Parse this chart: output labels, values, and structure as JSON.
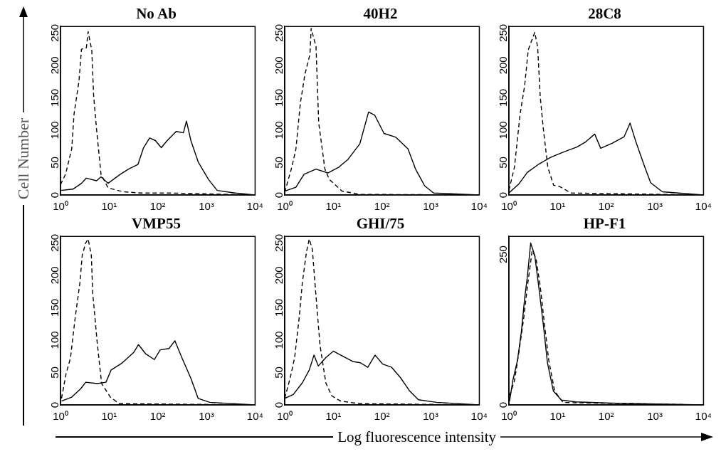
{
  "chart_data": [
    {
      "type": "line",
      "title": "No Ab",
      "ylabel": "Cell Number",
      "log": "x",
      "marker": "none",
      "xlim": [
        1,
        10000
      ],
      "xticks": [
        {
          "value": 1,
          "label": "10⁰"
        },
        {
          "value": 10,
          "label": "10¹"
        },
        {
          "value": 100,
          "label": "10²"
        },
        {
          "value": 1000,
          "label": "10³"
        },
        {
          "value": 10000,
          "label": "10⁴"
        }
      ],
      "ylim": [
        0,
        260
      ],
      "yticks": [
        0,
        50,
        100,
        150,
        200,
        250
      ],
      "series": [
        {
          "color": "#000000",
          "line_style": "dashed",
          "x": [
            1,
            1.27,
            1.7,
            1.9,
            2.4,
            2.7,
            3.4,
            3.7,
            4.4,
            4.8,
            5.5,
            6.8,
            9.5,
            19,
            45,
            178,
            724,
            10000
          ],
          "values": [
            16,
            32,
            71,
            125,
            176,
            225,
            227,
            252,
            223,
            153,
            102,
            32,
            11,
            5,
            3,
            3,
            2,
            0
          ]
        },
        {
          "color": "#000000",
          "line_style": "solid",
          "x": [
            1,
            1.8,
            2.7,
            3.4,
            5.5,
            6.8,
            9.5,
            17,
            25,
            39,
            51,
            68,
            89,
            118,
            156,
            238,
            336,
            388,
            478,
            676,
            1100,
            1660,
            3890,
            10000
          ],
          "values": [
            7,
            9,
            18,
            26,
            22,
            28,
            18,
            32,
            40,
            47,
            73,
            88,
            84,
            73,
            84,
            98,
            96,
            114,
            84,
            51,
            24,
            7,
            3,
            0
          ]
        }
      ]
    },
    {
      "type": "line",
      "title": "40H2",
      "log": "x",
      "marker": "none",
      "xlim": [
        1,
        10000
      ],
      "xticks": [
        {
          "value": 1,
          "label": "10⁰"
        },
        {
          "value": 10,
          "label": "10¹"
        },
        {
          "value": 100,
          "label": "10²"
        },
        {
          "value": 1000,
          "label": "10³"
        },
        {
          "value": 10000,
          "label": "10⁴"
        }
      ],
      "ylim": [
        0,
        260
      ],
      "yticks": [
        0,
        50,
        100,
        150,
        200,
        250
      ],
      "series": [
        {
          "color": "#000000",
          "line_style": "dashed",
          "x": [
            1,
            1.4,
            1.7,
            2.1,
            2.6,
            3.3,
            3.5,
            4.4,
            5,
            6.7,
            8.3,
            15,
            35,
            10000
          ],
          "values": [
            4,
            43,
            71,
            142,
            186,
            217,
            257,
            229,
            111,
            40,
            24,
            6,
            1,
            0
          ]
        },
        {
          "color": "#000000",
          "line_style": "solid",
          "x": [
            1,
            1.7,
            2.5,
            4.4,
            7.7,
            13,
            20,
            35,
            53,
            71,
            110,
            193,
            342,
            488,
            755,
            1150,
            10000
          ],
          "values": [
            6,
            12,
            32,
            40,
            34,
            43,
            55,
            79,
            128,
            123,
            95,
            89,
            71,
            40,
            14,
            3,
            0
          ]
        }
      ]
    },
    {
      "type": "line",
      "title": "28C8",
      "log": "x",
      "marker": "none",
      "xlim": [
        1,
        10000
      ],
      "xticks": [
        {
          "value": 1,
          "label": "10⁰"
        },
        {
          "value": 10,
          "label": "10¹"
        },
        {
          "value": 100,
          "label": "10²"
        },
        {
          "value": 1000,
          "label": "10³"
        },
        {
          "value": 10000,
          "label": "10⁴"
        }
      ],
      "ylim": [
        0,
        260
      ],
      "yticks": [
        0,
        50,
        100,
        150,
        200,
        250
      ],
      "series": [
        {
          "color": "#000000",
          "line_style": "dashed",
          "x": [
            1,
            1.3,
            1.7,
            2.1,
            2.5,
            3.4,
            3.9,
            4.4,
            5.1,
            6.3,
            8.3,
            11,
            19,
            10000
          ],
          "values": [
            7,
            43,
            125,
            168,
            224,
            251,
            228,
            152,
            102,
            43,
            15,
            13,
            3,
            0
          ]
        },
        {
          "color": "#000000",
          "line_style": "solid",
          "x": [
            1,
            1.6,
            2.4,
            4.2,
            7.2,
            13,
            25,
            38,
            58,
            77,
            134,
            234,
            309,
            407,
            620,
            818,
            1420,
            10000
          ],
          "values": [
            3,
            17,
            35,
            48,
            58,
            66,
            74,
            82,
            94,
            72,
            80,
            90,
            111,
            82,
            43,
            19,
            5,
            0
          ]
        }
      ]
    },
    {
      "type": "line",
      "title": "VMP55",
      "log": "x",
      "marker": "none",
      "xlim": [
        1,
        10000
      ],
      "xticks": [
        {
          "value": 1,
          "label": "10⁰"
        },
        {
          "value": 10,
          "label": "10¹"
        },
        {
          "value": 100,
          "label": "10²"
        },
        {
          "value": 1000,
          "label": "10³"
        },
        {
          "value": 10000,
          "label": "10⁴"
        }
      ],
      "ylim": [
        0,
        260
      ],
      "yticks": [
        0,
        50,
        100,
        150,
        200,
        250
      ],
      "series": [
        {
          "color": "#000000",
          "line_style": "dashed",
          "x": [
            1.05,
            1.3,
            1.6,
            2,
            2.5,
            2.8,
            3.3,
            3.7,
            4.3,
            4.6,
            5.7,
            7,
            10.6,
            16,
            10000
          ],
          "values": [
            10,
            48,
            72,
            134,
            188,
            231,
            250,
            256,
            231,
            172,
            95,
            33,
            12,
            2,
            0
          ]
        },
        {
          "color": "#000000",
          "line_style": "solid",
          "x": [
            1.05,
            1.7,
            2.6,
            3.3,
            5.7,
            8.6,
            11,
            18,
            32,
            40,
            56,
            85,
            112,
            170,
            224,
            316,
            479,
            676,
            1170,
            10000
          ],
          "values": [
            6,
            12,
            25,
            35,
            33,
            35,
            54,
            64,
            81,
            93,
            79,
            70,
            85,
            87,
            99,
            72,
            41,
            10,
            4,
            0
          ]
        }
      ]
    },
    {
      "type": "line",
      "title": "GHI/75",
      "xlabel": "Log fluorescence intensity",
      "log": "x",
      "marker": "none",
      "xlim": [
        1,
        10000
      ],
      "xticks": [
        {
          "value": 1,
          "label": "10⁰"
        },
        {
          "value": 10,
          "label": "10¹"
        },
        {
          "value": 100,
          "label": "10²"
        },
        {
          "value": 1000,
          "label": "10³"
        },
        {
          "value": 10000,
          "label": "10⁴"
        }
      ],
      "ylim": [
        0,
        260
      ],
      "yticks": [
        0,
        50,
        100,
        150,
        200,
        250
      ],
      "series": [
        {
          "color": "#000000",
          "line_style": "dashed",
          "x": [
            1,
            1.3,
            1.6,
            2,
            2.3,
            2.8,
            3.2,
            3.7,
            4.3,
            5.3,
            7,
            9.3,
            14,
            33,
            10000
          ],
          "values": [
            10,
            42,
            73,
            137,
            188,
            236,
            256,
            240,
            177,
            93,
            34,
            14,
            6,
            2,
            0
          ]
        },
        {
          "color": "#000000",
          "line_style": "solid",
          "x": [
            1,
            1.5,
            2.3,
            3.2,
            4,
            4.9,
            7,
            10,
            14,
            25,
            36,
            51,
            72,
            103,
            158,
            240,
            365,
            560,
            1320,
            10000
          ],
          "values": [
            10,
            16,
            34,
            54,
            77,
            60,
            73,
            83,
            77,
            67,
            65,
            58,
            77,
            63,
            58,
            42,
            22,
            8,
            4,
            0
          ]
        }
      ]
    },
    {
      "type": "line",
      "title": "HP-F1",
      "log": "x",
      "marker": "none",
      "xlim": [
        1,
        10000
      ],
      "xticks": [
        {
          "value": 1,
          "label": "10⁰"
        },
        {
          "value": 10,
          "label": "10¹"
        },
        {
          "value": 100,
          "label": "10²"
        },
        {
          "value": 1000,
          "label": "10³"
        },
        {
          "value": 10000,
          "label": "10⁴"
        }
      ],
      "ylim": [
        0,
        280
      ],
      "yticks": [
        0,
        250
      ],
      "series": [
        {
          "color": "#000000",
          "line_style": "dashed",
          "x": [
            1.03,
            1.3,
            1.6,
            2,
            2.4,
            3,
            3.6,
            4.4,
            5.4,
            6.6,
            8.7,
            13,
            10000
          ],
          "values": [
            15,
            40,
            87,
            142,
            197,
            256,
            244,
            197,
            133,
            74,
            23,
            4,
            0
          ]
        },
        {
          "color": "#000000",
          "line_style": "solid",
          "x": [
            1.03,
            1.2,
            1.5,
            1.8,
            2.1,
            2.4,
            2.8,
            3.4,
            4.1,
            5.1,
            6.2,
            8.2,
            12,
            24,
            123,
            10000
          ],
          "values": [
            6,
            40,
            74,
            121,
            176,
            214,
            269,
            248,
            197,
            133,
            70,
            23,
            8,
            5,
            3,
            0
          ]
        }
      ]
    }
  ]
}
